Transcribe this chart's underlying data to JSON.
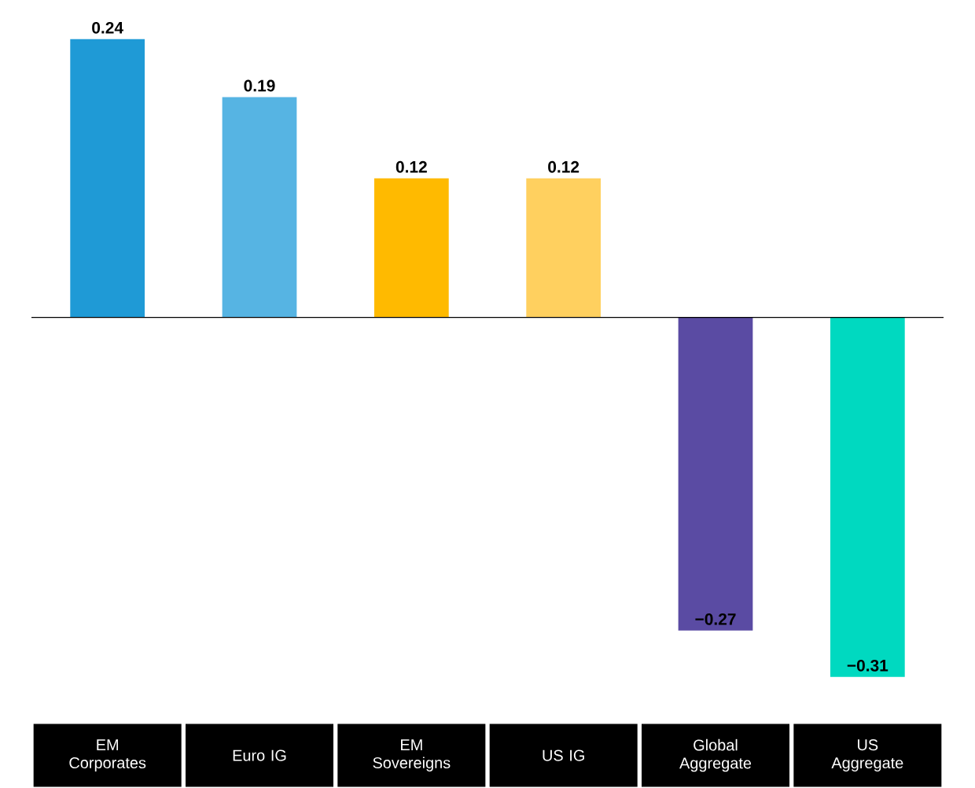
{
  "chart_data": {
    "type": "bar",
    "categories": [
      "EM Corporates",
      "Euro IG",
      "EM Sovereigns",
      "US IG",
      "Global Aggregate",
      "US Aggregate"
    ],
    "values": [
      0.24,
      0.19,
      0.12,
      0.12,
      -0.27,
      -0.31
    ],
    "colors": [
      "#1f9ad6",
      "#56b4e3",
      "#ffba00",
      "#ffd05f",
      "#5a4ba3",
      "#00d9c0"
    ],
    "data_labels": true
  }
}
